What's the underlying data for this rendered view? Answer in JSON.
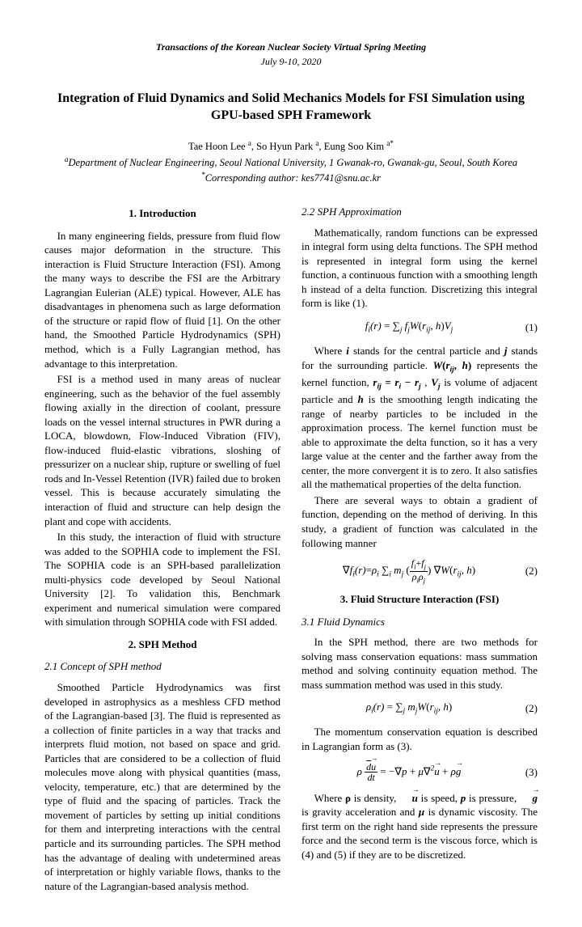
{
  "venue": "Transactions of the Korean Nuclear Society Virtual Spring Meeting",
  "date": "July 9-10, 2020",
  "title": "Integration of Fluid Dynamics and Solid Mechanics Models for FSI Simulation using GPU-based SPH Framework",
  "authors_html": "Tae Hoon Lee <sup>a</sup>, So Hyun Park <sup>a</sup>, Eung Soo Kim <sup>a*</sup>",
  "affiliation_html": "<sup>a</sup>Department of Nuclear Engineering, Seoul National University, 1 Gwanak-ro, Gwanak-gu, Seoul, South Korea",
  "corresponding_html": "<sup>*</sup>Corresponding author: kes7741@snu.ac.kr",
  "sec1": "1. Introduction",
  "p1": "In many engineering fields, pressure from fluid flow causes major deformation in the structure. This interaction is Fluid Structure Interaction (FSI). Among the many ways to describe the FSI are the Arbitrary Lagrangian Eulerian (ALE) typical. However, ALE has disadvantages in phenomena such as large deformation of the structure or rapid flow of fluid [1]. On the other hand, the Smoothed Particle Hydrodynamics (SPH) method, which is a Fully Lagrangian method, has advantage to this interpretation.",
  "p2": "FSI is a method used in many areas of nuclear engineering, such as the behavior of the fuel assembly flowing axially in the direction of coolant, pressure loads on the vessel internal structures in PWR during a LOCA, blowdown, Flow-Induced Vibration (FIV), flow-induced fluid-elastic vibrations, sloshing of pressurizer on a nuclear ship, rupture or swelling of fuel rods and In-Vessel Retention (IVR) failed due to broken vessel. This is because accurately simulating the interaction of fluid and structure can help design the plant and cope with accidents.",
  "p3": "In this study, the interaction of fluid with structure was added to the SOPHIA code to implement the FSI. The SOPHIA code is an SPH-based parallelization multi-physics code developed by Seoul National University [2]. To validation this, Benchmark experiment and numerical simulation were compared with simulation through SOPHIA code with FSI added.",
  "sec2": "2. SPH Method",
  "sub21": "2.1 Concept of SPH method",
  "p4": "Smoothed Particle Hydrodynamics was first developed in astrophysics as a meshless CFD method of the Lagrangian-based [3]. The fluid is represented as a collection of finite particles in a way that tracks and interprets fluid motion, not based on space and grid. Particles that are considered to be a collection of fluid molecules move along with physical quantities (mass, velocity, temperature, etc.) that are determined by the type of fluid and the spacing of particles. Track the movement of particles by setting up initial conditions for them and interpreting interactions with the central particle and its surrounding particles. The SPH method has the advantage of dealing with undetermined areas of interpretation or highly variable flows, thanks to the nature of the Lagrangian-based analysis method.",
  "sub22": "2.2 SPH Approximation",
  "p5": "Mathematically, random functions can be expressed in integral form using delta functions. The SPH method is represented in integral form using the kernel function, a continuous function with a smoothing length h instead of a delta function. Discretizing this integral form is like (1).",
  "eq1_num": "(1)",
  "p6a": "Where ",
  "p6b": " stands for the central particle and ",
  "p6c": " stands for the surrounding particle. ",
  "p6d": " represents the kernel function, ",
  "p6e": " is volume of adjacent particle and ",
  "p6f": " is the smoothing length indicating the range of nearby particles to be included in the approximation process. The kernel function must be able to approximate the delta function, so it has a very large value at the center and the farther away from the center, the more convergent it is to zero. It also satisfies all the mathematical properties of the delta function.",
  "p7": "There are several ways to obtain a gradient of function, depending on the method of deriving. In this study, a gradient of function was calculated in the following manner",
  "eq2_num": "(2)",
  "sec3": "3. Fluid Structure Interaction (FSI)",
  "sub31": "3.1 Fluid Dynamics",
  "p8": "In the SPH method, there are two methods for solving mass conservation equations: mass summation method and solving continuity equation method. The mass summation method was used in this study.",
  "eq3_num": "(2)",
  "p9": "The momentum conservation equation is described in Lagrangian form as (3).",
  "eq4_num": "(3)",
  "p10a": "Where ",
  "p10b": " is density, ",
  "p10c": " is speed, ",
  "p10d": " is pressure, ",
  "p10e": " is gravity acceleration and ",
  "p10f": " is dynamic viscosity. The first term on the right hand side represents the pressure force and the second term is the viscous force, which is (4) and (5) if they are to be discretized."
}
